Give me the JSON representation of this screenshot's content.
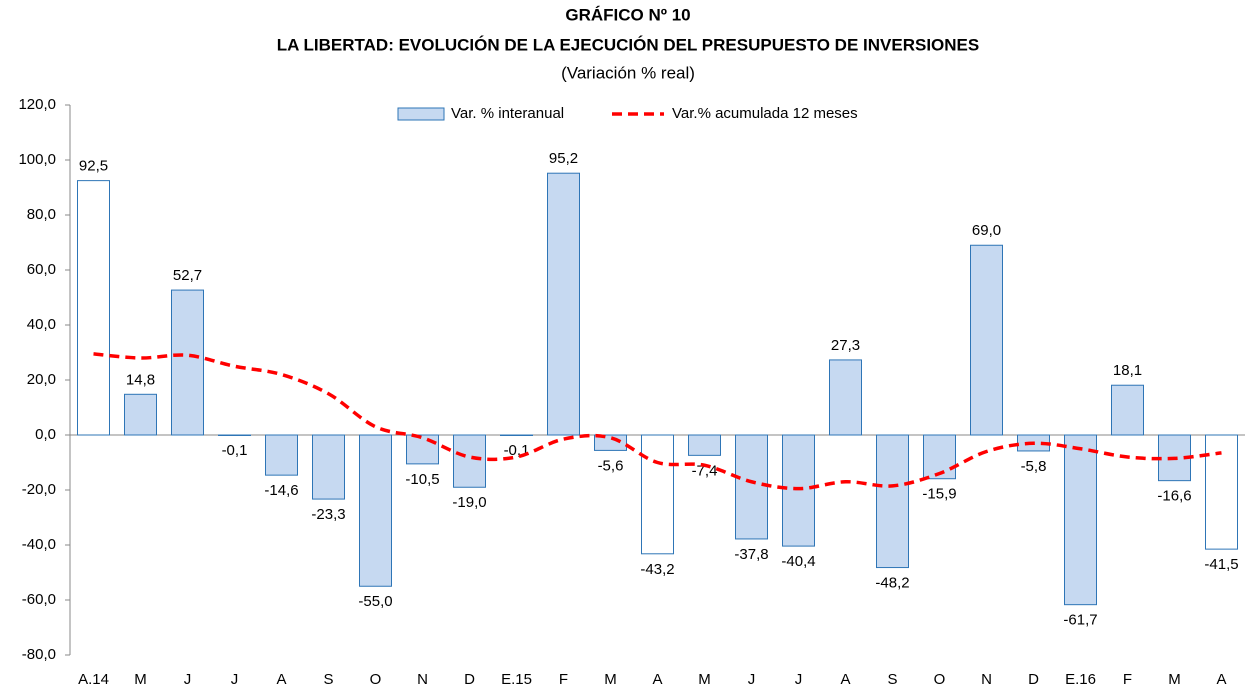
{
  "chart_data": {
    "type": "bar_line",
    "title": "GRÁFICO Nº 10",
    "subtitle": "LA LIBERTAD: EVOLUCIÓN DE LA EJECUCIÓN DEL PRESUPUESTO DE INVERSIONES",
    "note": "(Variación % real)",
    "categories": [
      "A.14",
      "M",
      "J",
      "J",
      "A",
      "S",
      "O",
      "N",
      "D",
      "E.15",
      "F",
      "M",
      "A",
      "M",
      "J",
      "J",
      "A",
      "S",
      "O",
      "N",
      "D",
      "E.16",
      "F",
      "M",
      "A"
    ],
    "series": [
      {
        "name": "Var. % interanual",
        "type": "bar",
        "color": "#c6d9f1",
        "edge": "#2e75b6",
        "colors": [
          "#ffffff",
          "#c6d9f1",
          "#c6d9f1",
          "#c6d9f1",
          "#c6d9f1",
          "#c6d9f1",
          "#c6d9f1",
          "#c6d9f1",
          "#c6d9f1",
          "#c6d9f1",
          "#c6d9f1",
          "#c6d9f1",
          "#ffffff",
          "#c6d9f1",
          "#c6d9f1",
          "#c6d9f1",
          "#c6d9f1",
          "#c6d9f1",
          "#c6d9f1",
          "#c6d9f1",
          "#c6d9f1",
          "#c6d9f1",
          "#c6d9f1",
          "#c6d9f1",
          "#ffffff"
        ],
        "values": [
          92.5,
          14.8,
          52.7,
          -0.1,
          -14.6,
          -23.3,
          -55.0,
          -10.5,
          -19.0,
          -0.1,
          95.2,
          -5.6,
          -43.2,
          -7.4,
          -37.8,
          -40.4,
          27.3,
          -48.2,
          -15.9,
          69.0,
          -5.8,
          -61.7,
          18.1,
          -16.6,
          -41.5
        ],
        "value_labels": [
          "92,5",
          "14,8",
          "52,7",
          "-0,1",
          "-14,6",
          "-23,3",
          "-55,0",
          "-10,5",
          "-19,0",
          "-0,1",
          "95,2",
          "-5,6",
          "-43,2",
          "-7,4",
          "-37,8",
          "-40,4",
          "27,3",
          "-48,2",
          "-15,9",
          "69,0",
          "-5,8",
          "-61,7",
          "18,1",
          "-16,6",
          "-41,5"
        ]
      },
      {
        "name": "Var.% acumulada 12 meses",
        "type": "line",
        "color": "#ff0000",
        "values": [
          29.5,
          28,
          29,
          25,
          22,
          15,
          3,
          -1,
          -8,
          -8,
          -1.5,
          -1,
          -10,
          -11,
          -17,
          -19.5,
          -17,
          -18.5,
          -14,
          -6,
          -3,
          -5,
          -8,
          -8.5,
          -6.5
        ]
      }
    ],
    "ylim": [
      -80,
      120
    ],
    "yticks": [
      {
        "value": -80,
        "label": "-80,0"
      },
      {
        "value": -60,
        "label": "-60,0"
      },
      {
        "value": -40,
        "label": "-40,0"
      },
      {
        "value": -20,
        "label": "-20,0"
      },
      {
        "value": 0,
        "label": "0,0"
      },
      {
        "value": 20,
        "label": "20,0"
      },
      {
        "value": 40,
        "label": "40,0"
      },
      {
        "value": 60,
        "label": "60,0"
      },
      {
        "value": 80,
        "label": "80,0"
      },
      {
        "value": 100,
        "label": "100,0"
      },
      {
        "value": 120,
        "label": "120,0"
      }
    ],
    "legend": "top"
  }
}
